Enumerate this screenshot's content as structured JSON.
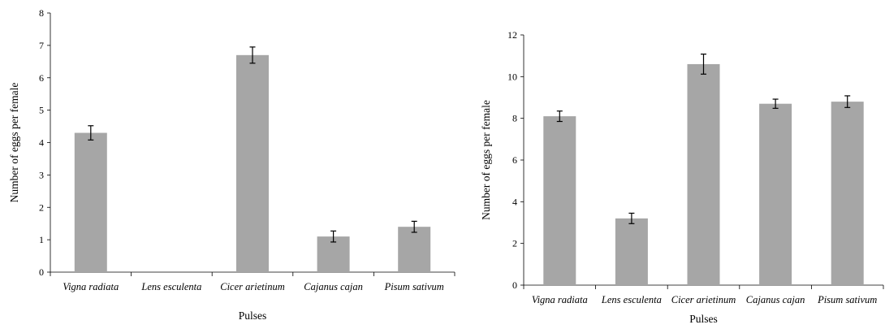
{
  "chart_data": [
    {
      "type": "bar",
      "categories": [
        "Vigna radiata",
        "Lens esculenta",
        "Cicer arietinum",
        "Cajanus cajan",
        "Pisum sativum"
      ],
      "series": [
        {
          "values": [
            4.3,
            0,
            6.7,
            1.1,
            1.4
          ],
          "errors": [
            0.22,
            0,
            0.25,
            0.17,
            0.17
          ]
        }
      ],
      "xlabel": "Pulses",
      "ylabel": "Number of eggs per female",
      "ylim": [
        0,
        8
      ],
      "yticks": [
        "0",
        "1",
        "2",
        "3",
        "4",
        "5",
        "6",
        "7",
        "8"
      ],
      "bar_color": "#a6a6a6",
      "grid": false
    },
    {
      "type": "bar",
      "categories": [
        "Vigna radiata",
        "Lens esculenta",
        "Cicer arietinum",
        "Cajanus cajan",
        "Pisum sativum"
      ],
      "series": [
        {
          "values": [
            8.1,
            3.2,
            10.6,
            8.7,
            8.8
          ],
          "errors": [
            0.25,
            0.25,
            0.48,
            0.22,
            0.28
          ]
        }
      ],
      "xlabel": "Pulses",
      "ylabel": "Number of eggs per female",
      "ylim": [
        0,
        12
      ],
      "yticks": [
        "0",
        "2",
        "4",
        "6",
        "8",
        "10",
        "12"
      ],
      "bar_color": "#a6a6a6",
      "grid": false
    }
  ]
}
